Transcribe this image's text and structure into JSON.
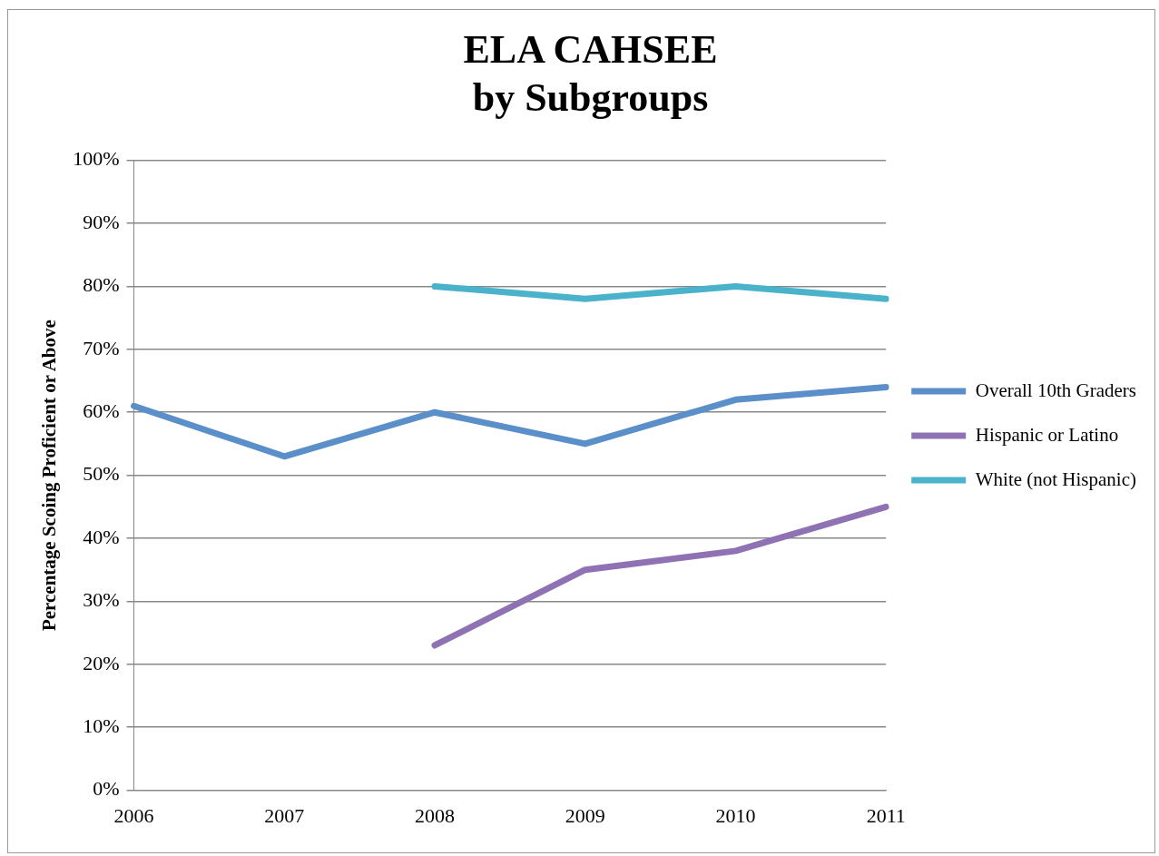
{
  "chart_data": {
    "type": "line",
    "title": "ELA CAHSEE\nby Subgroups",
    "ylabel": "Percentage Scoing Proficient or Above",
    "categories": [
      "2006",
      "2007",
      "2008",
      "2009",
      "2010",
      "2011"
    ],
    "series": [
      {
        "name": "Overall 10th Graders",
        "color": "#5b8fca",
        "values": [
          61,
          53,
          60,
          55,
          62,
          64
        ]
      },
      {
        "name": "Hispanic or Latino",
        "color": "#8e72b4",
        "values": [
          null,
          null,
          23,
          35,
          38,
          45
        ]
      },
      {
        "name": "White (not Hispanic)",
        "color": "#4bb2cc",
        "values": [
          null,
          null,
          80,
          78,
          80,
          78
        ]
      }
    ],
    "ylim": [
      0,
      100
    ],
    "yticks": [
      {
        "value": 0,
        "label": "0%"
      },
      {
        "value": 10,
        "label": "10%"
      },
      {
        "value": 20,
        "label": "20%"
      },
      {
        "value": 30,
        "label": "30%"
      },
      {
        "value": 40,
        "label": "40%"
      },
      {
        "value": 50,
        "label": "50%"
      },
      {
        "value": 60,
        "label": "60%"
      },
      {
        "value": 70,
        "label": "70%"
      },
      {
        "value": 80,
        "label": "80%"
      },
      {
        "value": 90,
        "label": "90%"
      },
      {
        "value": 100,
        "label": "100%"
      }
    ],
    "grid": "y",
    "legend": "right",
    "marker": "none",
    "line_style": "solid"
  }
}
